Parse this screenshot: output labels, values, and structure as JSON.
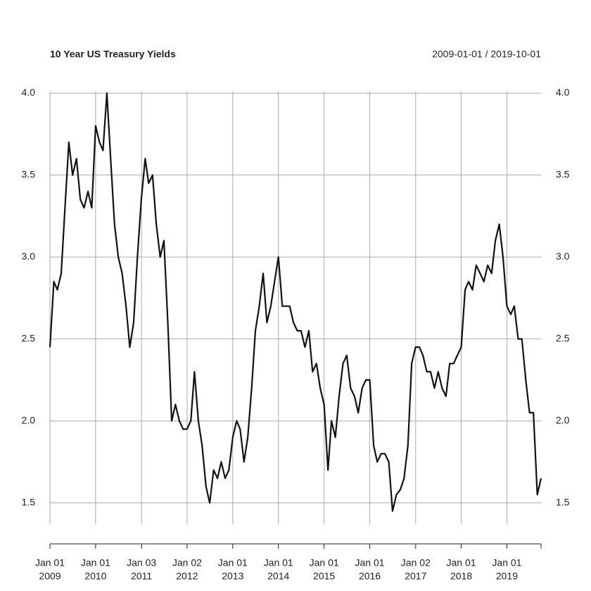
{
  "chart_data": {
    "type": "line",
    "title": "10 Year US Treasury Yields",
    "subtitle": "2009-01-01 / 2019-10-01",
    "xlim": [
      "2009-01-01",
      "2019-10-01"
    ],
    "ylim": [
      1.37,
      4.01
    ],
    "yticks": [
      {
        "value": 1.5,
        "label": "1.5"
      },
      {
        "value": 2,
        "label": "2.0"
      },
      {
        "value": 2.5,
        "label": "2.5"
      },
      {
        "value": 3,
        "label": "3.0"
      },
      {
        "value": 3.5,
        "label": "3.5"
      },
      {
        "value": 4,
        "label": "4.0"
      }
    ],
    "xticks": [
      {
        "value": "2009-01-01",
        "label": [
          "Jan 01",
          "2009"
        ]
      },
      {
        "value": "2010-01-01",
        "label": [
          "Jan 01",
          "2010"
        ]
      },
      {
        "value": "2011-01-03",
        "label": [
          "Jan 03",
          "2011"
        ]
      },
      {
        "value": "2012-01-02",
        "label": [
          "Jan 02",
          "2012"
        ]
      },
      {
        "value": "2013-01-01",
        "label": [
          "Jan 01",
          "2013"
        ]
      },
      {
        "value": "2014-01-01",
        "label": [
          "Jan 01",
          "2014"
        ]
      },
      {
        "value": "2015-01-01",
        "label": [
          "Jan 01",
          "2015"
        ]
      },
      {
        "value": "2016-01-01",
        "label": [
          "Jan 01",
          "2016"
        ]
      },
      {
        "value": "2017-01-02",
        "label": [
          "Jan 02",
          "2017"
        ]
      },
      {
        "value": "2018-01-01",
        "label": [
          "Jan 01",
          "2018"
        ]
      },
      {
        "value": "2019-01-01",
        "label": [
          "Jan 01",
          "2019"
        ]
      }
    ],
    "grid": true,
    "x": [
      "2009-01-01",
      "2009-02-01",
      "2009-03-01",
      "2009-04-01",
      "2009-05-01",
      "2009-06-01",
      "2009-07-01",
      "2009-08-01",
      "2009-09-01",
      "2009-10-01",
      "2009-11-01",
      "2009-12-01",
      "2010-01-01",
      "2010-02-01",
      "2010-03-01",
      "2010-04-01",
      "2010-05-01",
      "2010-06-01",
      "2010-07-01",
      "2010-08-01",
      "2010-09-01",
      "2010-10-01",
      "2010-11-01",
      "2010-12-01",
      "2011-01-01",
      "2011-02-01",
      "2011-03-01",
      "2011-04-01",
      "2011-05-01",
      "2011-06-01",
      "2011-07-01",
      "2011-08-01",
      "2011-09-01",
      "2011-10-01",
      "2011-11-01",
      "2011-12-01",
      "2012-01-01",
      "2012-02-01",
      "2012-03-01",
      "2012-04-01",
      "2012-05-01",
      "2012-06-01",
      "2012-07-01",
      "2012-08-01",
      "2012-09-01",
      "2012-10-01",
      "2012-11-01",
      "2012-12-01",
      "2013-01-01",
      "2013-02-01",
      "2013-03-01",
      "2013-04-01",
      "2013-05-01",
      "2013-06-01",
      "2013-07-01",
      "2013-08-01",
      "2013-09-01",
      "2013-10-01",
      "2013-11-01",
      "2013-12-01",
      "2014-01-01",
      "2014-02-01",
      "2014-03-01",
      "2014-04-01",
      "2014-05-01",
      "2014-06-01",
      "2014-07-01",
      "2014-08-01",
      "2014-09-01",
      "2014-10-01",
      "2014-11-01",
      "2014-12-01",
      "2015-01-01",
      "2015-02-01",
      "2015-03-01",
      "2015-04-01",
      "2015-05-01",
      "2015-06-01",
      "2015-07-01",
      "2015-08-01",
      "2015-09-01",
      "2015-10-01",
      "2015-11-01",
      "2015-12-01",
      "2016-01-01",
      "2016-02-01",
      "2016-03-01",
      "2016-04-01",
      "2016-05-01",
      "2016-06-01",
      "2016-07-01",
      "2016-08-01",
      "2016-09-01",
      "2016-10-01",
      "2016-11-01",
      "2016-12-01",
      "2017-01-01",
      "2017-02-01",
      "2017-03-01",
      "2017-04-01",
      "2017-05-01",
      "2017-06-01",
      "2017-07-01",
      "2017-08-01",
      "2017-09-01",
      "2017-10-01",
      "2017-11-01",
      "2017-12-01",
      "2018-01-01",
      "2018-02-01",
      "2018-03-01",
      "2018-04-01",
      "2018-05-01",
      "2018-06-01",
      "2018-07-01",
      "2018-08-01",
      "2018-09-01",
      "2018-10-01",
      "2018-11-01",
      "2018-12-01",
      "2019-01-01",
      "2019-02-01",
      "2019-03-01",
      "2019-04-01",
      "2019-05-01",
      "2019-06-01",
      "2019-07-01",
      "2019-08-01",
      "2019-09-01",
      "2019-10-01"
    ],
    "series": [
      {
        "color": "#111111",
        "values": [
          2.45,
          2.85,
          2.8,
          2.9,
          3.3,
          3.7,
          3.5,
          3.6,
          3.35,
          3.3,
          3.4,
          3.3,
          3.8,
          3.7,
          3.65,
          4.0,
          3.6,
          3.2,
          3.0,
          2.9,
          2.7,
          2.45,
          2.6,
          3.0,
          3.35,
          3.6,
          3.45,
          3.5,
          3.2,
          3.0,
          3.1,
          2.6,
          2.0,
          2.1,
          2.0,
          1.95,
          1.95,
          2.0,
          2.3,
          2.0,
          1.85,
          1.6,
          1.5,
          1.7,
          1.65,
          1.75,
          1.65,
          1.7,
          1.9,
          2.0,
          1.95,
          1.75,
          1.9,
          2.2,
          2.55,
          2.7,
          2.9,
          2.6,
          2.7,
          2.85,
          3.0,
          2.7,
          2.7,
          2.7,
          2.6,
          2.55,
          2.55,
          2.45,
          2.55,
          2.3,
          2.35,
          2.2,
          2.1,
          1.7,
          2.0,
          1.9,
          2.15,
          2.35,
          2.4,
          2.2,
          2.15,
          2.05,
          2.2,
          2.25,
          2.25,
          1.85,
          1.75,
          1.8,
          1.8,
          1.75,
          1.45,
          1.55,
          1.58,
          1.65,
          1.85,
          2.35,
          2.45,
          2.45,
          2.4,
          2.3,
          2.3,
          2.2,
          2.3,
          2.2,
          2.15,
          2.35,
          2.35,
          2.4,
          2.45,
          2.8,
          2.85,
          2.8,
          2.95,
          2.9,
          2.85,
          2.95,
          2.9,
          3.1,
          3.2,
          3.0,
          2.7,
          2.65,
          2.7,
          2.5,
          2.5,
          2.25,
          2.05,
          2.05,
          1.55,
          1.65
        ]
      }
    ]
  }
}
